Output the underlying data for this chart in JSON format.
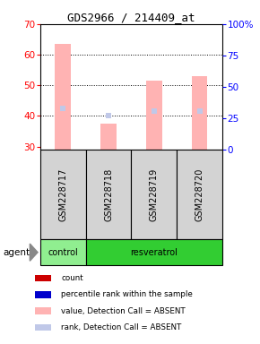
{
  "title": "GDS2966 / 214409_at",
  "samples": [
    "GSM228717",
    "GSM228718",
    "GSM228719",
    "GSM228720"
  ],
  "groups": [
    "control",
    "resveratrol",
    "resveratrol",
    "resveratrol"
  ],
  "bar_values": [
    63.5,
    37.5,
    51.5,
    53.0
  ],
  "rank_values": [
    42.5,
    40.0,
    41.5,
    41.5
  ],
  "bar_bottom": 29,
  "ylim_left": [
    29,
    70
  ],
  "ylim_right": [
    0,
    100
  ],
  "yticks_left": [
    30,
    40,
    50,
    60,
    70
  ],
  "yticks_right": [
    0,
    25,
    50,
    75,
    100
  ],
  "bar_color_absent": "#ffb3b3",
  "rank_color_absent": "#c0c8e8",
  "control_color": "#90ee90",
  "resveratrol_color": "#32cd32",
  "sample_bg": "#d3d3d3",
  "legend_items": [
    {
      "label": "count",
      "color": "#cc0000"
    },
    {
      "label": "percentile rank within the sample",
      "color": "#0000cc"
    },
    {
      "label": "value, Detection Call = ABSENT",
      "color": "#ffb3b3"
    },
    {
      "label": "rank, Detection Call = ABSENT",
      "color": "#c0c8e8"
    }
  ]
}
